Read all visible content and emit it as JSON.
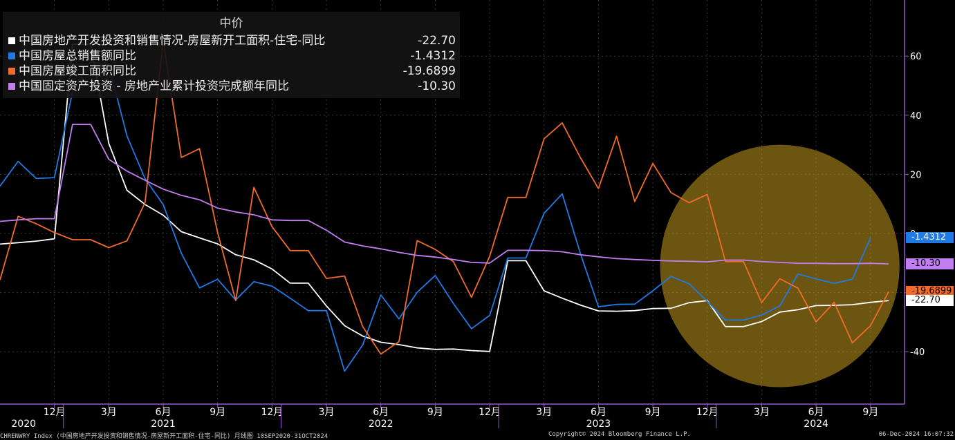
{
  "legend": {
    "title": "中价",
    "items": [
      {
        "name": "中国房地产开发投资和销售情况-房屋新开工面积-住宅-同比",
        "value": "-22.70",
        "color": "#ffffff"
      },
      {
        "name": "中国房屋总销售额同比",
        "value": "-1.4312",
        "color": "#1f7ae6"
      },
      {
        "name": "中国房屋竣工面积同比",
        "value": "-19.6899",
        "color": "#f26b2a"
      },
      {
        "name": "中国固定资产投资 - 房地产业累计投资完成额年同比",
        "value": "-10.30",
        "color": "#c07ef0"
      }
    ]
  },
  "last_value_labels": [
    {
      "text": "-1.4312",
      "value": -1.4312,
      "bg": "#1f7ae6",
      "color": "#ffffff"
    },
    {
      "text": "-10.30",
      "value": -10.3,
      "bg": "#c07ef0",
      "color": "#000000"
    },
    {
      "text": "-19.6899",
      "value": -19.6899,
      "bg": "#f26b2a",
      "color": "#000000"
    },
    {
      "text": "-22.70",
      "value": -22.7,
      "bg": "#ffffff",
      "color": "#000000"
    }
  ],
  "footer": {
    "left": "CHRENWRY Index (中国房地产开发投资和销售情况-房屋新开工面积-住宅-同比) 月线图 10SEP2020-31OCT2024",
    "center": "Copyright© 2024 Bloomberg Finance L.P.",
    "right": "06-Dec-2024 16:07:32"
  },
  "chart_data": {
    "type": "line",
    "x_start": "2020-09",
    "x_end": "2024-10",
    "x_ticks": [
      {
        "label": "12月",
        "month": "2020-12"
      },
      {
        "label": "3月",
        "month": "2021-03"
      },
      {
        "label": "6月",
        "month": "2021-06"
      },
      {
        "label": "9月",
        "month": "2021-09"
      },
      {
        "label": "12月",
        "month": "2021-12"
      },
      {
        "label": "3月",
        "month": "2022-03"
      },
      {
        "label": "6月",
        "month": "2022-06"
      },
      {
        "label": "9月",
        "month": "2022-09"
      },
      {
        "label": "12月",
        "month": "2022-12"
      },
      {
        "label": "3月",
        "month": "2023-03"
      },
      {
        "label": "6月",
        "month": "2023-06"
      },
      {
        "label": "9月",
        "month": "2023-09"
      },
      {
        "label": "12月",
        "month": "2023-12"
      },
      {
        "label": "3月",
        "month": "2024-03"
      },
      {
        "label": "6月",
        "month": "2024-06"
      },
      {
        "label": "9月",
        "month": "2024-09"
      }
    ],
    "year_labels": [
      {
        "label": "2020",
        "month": "2020-10"
      },
      {
        "label": "2021",
        "month": "2021-06"
      },
      {
        "label": "2022",
        "month": "2022-06"
      },
      {
        "label": "2023",
        "month": "2023-06"
      },
      {
        "label": "2024",
        "month": "2024-06"
      }
    ],
    "y_ticks": [
      60,
      40,
      20,
      0,
      -20,
      -40
    ],
    "ylim": [
      -53,
      79
    ],
    "grid": true,
    "highlight_ellipse": {
      "center_month": "2024-04",
      "center_value": -11,
      "rx_months": 6.6,
      "ry_value": 41,
      "color": "#c49a1d",
      "opacity": 0.55
    },
    "series": [
      {
        "name": "中国房地产开发投资和销售情况-房屋新开工面积-住宅-同比",
        "color": "#ffffff",
        "points": [
          [
            "2020-09",
            -3.6
          ],
          [
            "2020-10",
            -3.1
          ],
          [
            "2020-11",
            -2.6
          ],
          [
            "2020-12",
            -1.8
          ],
          [
            "2021-01",
            64
          ],
          [
            "2021-02",
            64
          ],
          [
            "2021-03",
            30.5
          ],
          [
            "2021-04",
            14.6
          ],
          [
            "2021-05",
            9.8
          ],
          [
            "2021-06",
            6.2
          ],
          [
            "2021-07",
            0.6
          ],
          [
            "2021-08",
            -1.5
          ],
          [
            "2021-09",
            -3.5
          ],
          [
            "2021-10",
            -7.2
          ],
          [
            "2021-11",
            -8.9
          ],
          [
            "2021-12",
            -12
          ],
          [
            "2022-01",
            -16.8
          ],
          [
            "2022-02",
            -16.8
          ],
          [
            "2022-03",
            -24.5
          ],
          [
            "2022-04",
            -31.2
          ],
          [
            "2022-05",
            -34.7
          ],
          [
            "2022-06",
            -36.8
          ],
          [
            "2022-07",
            -37.6
          ],
          [
            "2022-08",
            -38.7
          ],
          [
            "2022-09",
            -39.2
          ],
          [
            "2022-10",
            -39.1
          ],
          [
            "2022-11",
            -39.6
          ],
          [
            "2022-12",
            -39.9
          ],
          [
            "2023-01",
            -9.2
          ],
          [
            "2023-02",
            -9.2
          ],
          [
            "2023-03",
            -19.4
          ],
          [
            "2023-04",
            -21.9
          ],
          [
            "2023-05",
            -24.2
          ],
          [
            "2023-06",
            -26.2
          ],
          [
            "2023-07",
            -26.3
          ],
          [
            "2023-08",
            -26.1
          ],
          [
            "2023-09",
            -25.4
          ],
          [
            "2023-10",
            -25.3
          ],
          [
            "2023-11",
            -23.4
          ],
          [
            "2023-12",
            -22.7
          ],
          [
            "2024-01",
            -31.5
          ],
          [
            "2024-02",
            -31.5
          ],
          [
            "2024-03",
            -29.8
          ],
          [
            "2024-04",
            -26.6
          ],
          [
            "2024-05",
            -25.8
          ],
          [
            "2024-06",
            -24.4
          ],
          [
            "2024-07",
            -24.3
          ],
          [
            "2024-08",
            -24.1
          ],
          [
            "2024-09",
            -23.3
          ],
          [
            "2024-10",
            -22.7
          ]
        ]
      },
      {
        "name": "中国房屋总销售额同比",
        "color": "#1f7ae6",
        "points": [
          [
            "2020-09",
            16
          ],
          [
            "2020-10",
            24.4
          ],
          [
            "2020-11",
            18.6
          ],
          [
            "2020-12",
            18.9
          ],
          [
            "2021-01",
            48
          ],
          [
            "2021-02",
            58
          ],
          [
            "2021-03",
            57
          ],
          [
            "2021-04",
            33
          ],
          [
            "2021-05",
            18.5
          ],
          [
            "2021-06",
            9.8
          ],
          [
            "2021-07",
            -6.7
          ],
          [
            "2021-08",
            -18.4
          ],
          [
            "2021-09",
            -15.5
          ],
          [
            "2021-10",
            -22.5
          ],
          [
            "2021-11",
            -16.3
          ],
          [
            "2021-12",
            -17.8
          ],
          [
            "2022-01",
            -21.9
          ],
          [
            "2022-02",
            -26.1
          ],
          [
            "2022-03",
            -26.1
          ],
          [
            "2022-04",
            -46.6
          ],
          [
            "2022-05",
            -37.7
          ],
          [
            "2022-06",
            -20.8
          ],
          [
            "2022-07",
            -28.9
          ],
          [
            "2022-08",
            -19.9
          ],
          [
            "2022-09",
            -14.2
          ],
          [
            "2022-10",
            -23.7
          ],
          [
            "2022-11",
            -32.2
          ],
          [
            "2022-12",
            -27.7
          ],
          [
            "2023-01",
            -8.3
          ],
          [
            "2023-02",
            -8.3
          ],
          [
            "2023-03",
            6.8
          ],
          [
            "2023-04",
            13.4
          ],
          [
            "2023-05",
            -6.7
          ],
          [
            "2023-06",
            -24.8
          ],
          [
            "2023-07",
            -24
          ],
          [
            "2023-08",
            -23.9
          ],
          [
            "2023-09",
            -19.4
          ],
          [
            "2023-10",
            -14.5
          ],
          [
            "2023-11",
            -17
          ],
          [
            "2023-12",
            -23
          ],
          [
            "2024-01",
            -29.3
          ],
          [
            "2024-02",
            -29.3
          ],
          [
            "2024-03",
            -27.6
          ],
          [
            "2024-04",
            -24.5
          ],
          [
            "2024-05",
            -13.7
          ],
          [
            "2024-06",
            -15.4
          ],
          [
            "2024-07",
            -16.9
          ],
          [
            "2024-08",
            -15.5
          ],
          [
            "2024-09",
            -1.4312
          ]
        ]
      },
      {
        "name": "中国房屋竣工面积同比",
        "color": "#f26b2a",
        "points": [
          [
            "2020-09",
            -15.7
          ],
          [
            "2020-10",
            5.8
          ],
          [
            "2020-11",
            3.3
          ],
          [
            "2020-12",
            0.3
          ],
          [
            "2021-01",
            -2.1
          ],
          [
            "2021-02",
            -2.1
          ],
          [
            "2021-03",
            -4.8
          ],
          [
            "2021-04",
            -2.5
          ],
          [
            "2021-05",
            10.5
          ],
          [
            "2021-06",
            65
          ],
          [
            "2021-07",
            25.7
          ],
          [
            "2021-08",
            28.7
          ],
          [
            "2021-09",
            0.3
          ],
          [
            "2021-10",
            -22.7
          ],
          [
            "2021-11",
            15.6
          ],
          [
            "2021-12",
            2.3
          ],
          [
            "2022-01",
            -5.8
          ],
          [
            "2022-02",
            -5.8
          ],
          [
            "2022-03",
            -15.2
          ],
          [
            "2022-04",
            -14.4
          ],
          [
            "2022-05",
            -31.5
          ],
          [
            "2022-06",
            -40.8
          ],
          [
            "2022-07",
            -36.6
          ],
          [
            "2022-08",
            -2.4
          ],
          [
            "2022-09",
            -5.4
          ],
          [
            "2022-10",
            -9.5
          ],
          [
            "2022-11",
            -21.6
          ],
          [
            "2022-12",
            -7.7
          ],
          [
            "2023-01",
            12.2
          ],
          [
            "2023-02",
            12.2
          ],
          [
            "2023-03",
            32
          ],
          [
            "2023-04",
            37.4
          ],
          [
            "2023-05",
            25.7
          ],
          [
            "2023-06",
            15.2
          ],
          [
            "2023-07",
            32.9
          ],
          [
            "2023-08",
            10.8
          ],
          [
            "2023-09",
            23.7
          ],
          [
            "2023-10",
            13.8
          ],
          [
            "2023-11",
            10.4
          ],
          [
            "2023-12",
            13.2
          ],
          [
            "2024-01",
            -9.5
          ],
          [
            "2024-02",
            -9.5
          ],
          [
            "2024-03",
            -23.4
          ],
          [
            "2024-04",
            -15.3
          ],
          [
            "2024-05",
            -18.5
          ],
          [
            "2024-06",
            -29.9
          ],
          [
            "2024-07",
            -23.3
          ],
          [
            "2024-08",
            -37
          ],
          [
            "2024-09",
            -31.2
          ],
          [
            "2024-10",
            -19.6899
          ]
        ]
      },
      {
        "name": "中国固定资产投资 - 房地产业累计投资完成额年同比",
        "color": "#c07ef0",
        "points": [
          [
            "2020-09",
            4.1
          ],
          [
            "2020-10",
            4.6
          ],
          [
            "2020-11",
            5
          ],
          [
            "2020-12",
            5
          ],
          [
            "2021-01",
            36.9
          ],
          [
            "2021-02",
            36.9
          ],
          [
            "2021-03",
            25.1
          ],
          [
            "2021-04",
            21.1
          ],
          [
            "2021-05",
            18
          ],
          [
            "2021-06",
            15
          ],
          [
            "2021-07",
            12.9
          ],
          [
            "2021-08",
            11.4
          ],
          [
            "2021-09",
            8.6
          ],
          [
            "2021-10",
            7.3
          ],
          [
            "2021-11",
            6.3
          ],
          [
            "2021-12",
            4.6
          ],
          [
            "2022-01",
            4.4
          ],
          [
            "2022-02",
            4.4
          ],
          [
            "2022-03",
            1.1
          ],
          [
            "2022-04",
            -2.9
          ],
          [
            "2022-05",
            -4.2
          ],
          [
            "2022-06",
            -5.2
          ],
          [
            "2022-07",
            -6.4
          ],
          [
            "2022-08",
            -7.4
          ],
          [
            "2022-09",
            -8.0
          ],
          [
            "2022-10",
            -8.8
          ],
          [
            "2022-11",
            -9.8
          ],
          [
            "2022-12",
            -10.0
          ],
          [
            "2023-01",
            -5.7
          ],
          [
            "2023-02",
            -5.7
          ],
          [
            "2023-03",
            -5.8
          ],
          [
            "2023-04",
            -6.2
          ],
          [
            "2023-05",
            -7.2
          ],
          [
            "2023-06",
            -7.9
          ],
          [
            "2023-07",
            -8.5
          ],
          [
            "2023-08",
            -8.8
          ],
          [
            "2023-09",
            -9.1
          ],
          [
            "2023-10",
            -9.3
          ],
          [
            "2023-11",
            -9.4
          ],
          [
            "2023-12",
            -9.6
          ],
          [
            "2024-01",
            -9.0
          ],
          [
            "2024-02",
            -9.0
          ],
          [
            "2024-03",
            -9.5
          ],
          [
            "2024-04",
            -9.8
          ],
          [
            "2024-05",
            -10.1
          ],
          [
            "2024-06",
            -10.1
          ],
          [
            "2024-07",
            -10.2
          ],
          [
            "2024-08",
            -10.2
          ],
          [
            "2024-09",
            -10.1
          ],
          [
            "2024-10",
            -10.3
          ]
        ]
      }
    ]
  }
}
